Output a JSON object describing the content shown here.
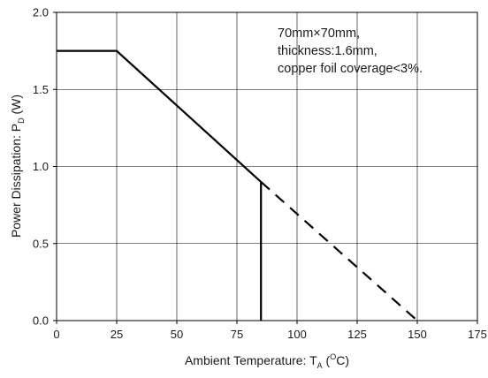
{
  "chart_data": {
    "type": "line",
    "xlabel": {
      "prefix": "Ambient Temperature: T",
      "subscript": "A",
      "middle": " (",
      "superscript": "O",
      "suffix": "C)"
    },
    "ylabel": {
      "prefix": "Power Dissipation: P",
      "subscript": "D",
      "suffix": " (W)"
    },
    "xlim": [
      0,
      175
    ],
    "ylim": [
      0,
      2.0
    ],
    "xticks": [
      0,
      25,
      50,
      75,
      100,
      125,
      150,
      175
    ],
    "yticks": [
      0.0,
      0.5,
      1.0,
      1.5,
      2.0
    ],
    "ytick_labels": [
      "0.0",
      "0.5",
      "1.0",
      "1.5",
      "2.0"
    ],
    "grid": true,
    "series": [
      {
        "style": "solid",
        "color": "#000000",
        "x": [
          0,
          25,
          85,
          85
        ],
        "y": [
          1.75,
          1.75,
          0.9,
          0
        ]
      },
      {
        "style": "dashed",
        "color": "#000000",
        "x": [
          85,
          150
        ],
        "y": [
          0.9,
          0
        ]
      }
    ],
    "annotation": [
      "70mm×70mm,",
      "thickness:1.6mm,",
      "copper foil coverage<3%."
    ]
  }
}
